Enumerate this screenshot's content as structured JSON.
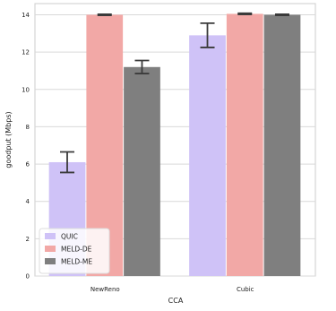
{
  "chart_data": {
    "type": "bar",
    "categories": [
      "NewReno",
      "Cubic"
    ],
    "series": [
      {
        "name": "QUIC",
        "values": [
          6.1,
          12.9
        ],
        "error": [
          [
            5.55,
            6.65
          ],
          [
            12.25,
            13.55
          ]
        ],
        "color": "#cfc2f7"
      },
      {
        "name": "MELD-DE",
        "values": [
          14.0,
          14.05
        ],
        "error": [
          [
            13.97,
            14.03
          ],
          [
            14.02,
            14.08
          ]
        ],
        "color": "#f2a8a6"
      },
      {
        "name": "MELD-ME",
        "values": [
          11.2,
          14.0
        ],
        "error": [
          [
            10.85,
            11.55
          ],
          [
            13.97,
            14.03
          ]
        ],
        "color": "#7f7f7f"
      }
    ],
    "xlabel": "CCA",
    "ylabel": "goodput (Mbps)",
    "ylim": [
      0,
      14.6
    ],
    "yticks": [
      0,
      2,
      4,
      6,
      8,
      10,
      12,
      14
    ],
    "grid": "horizontal",
    "legend_position": "bottom-left"
  }
}
